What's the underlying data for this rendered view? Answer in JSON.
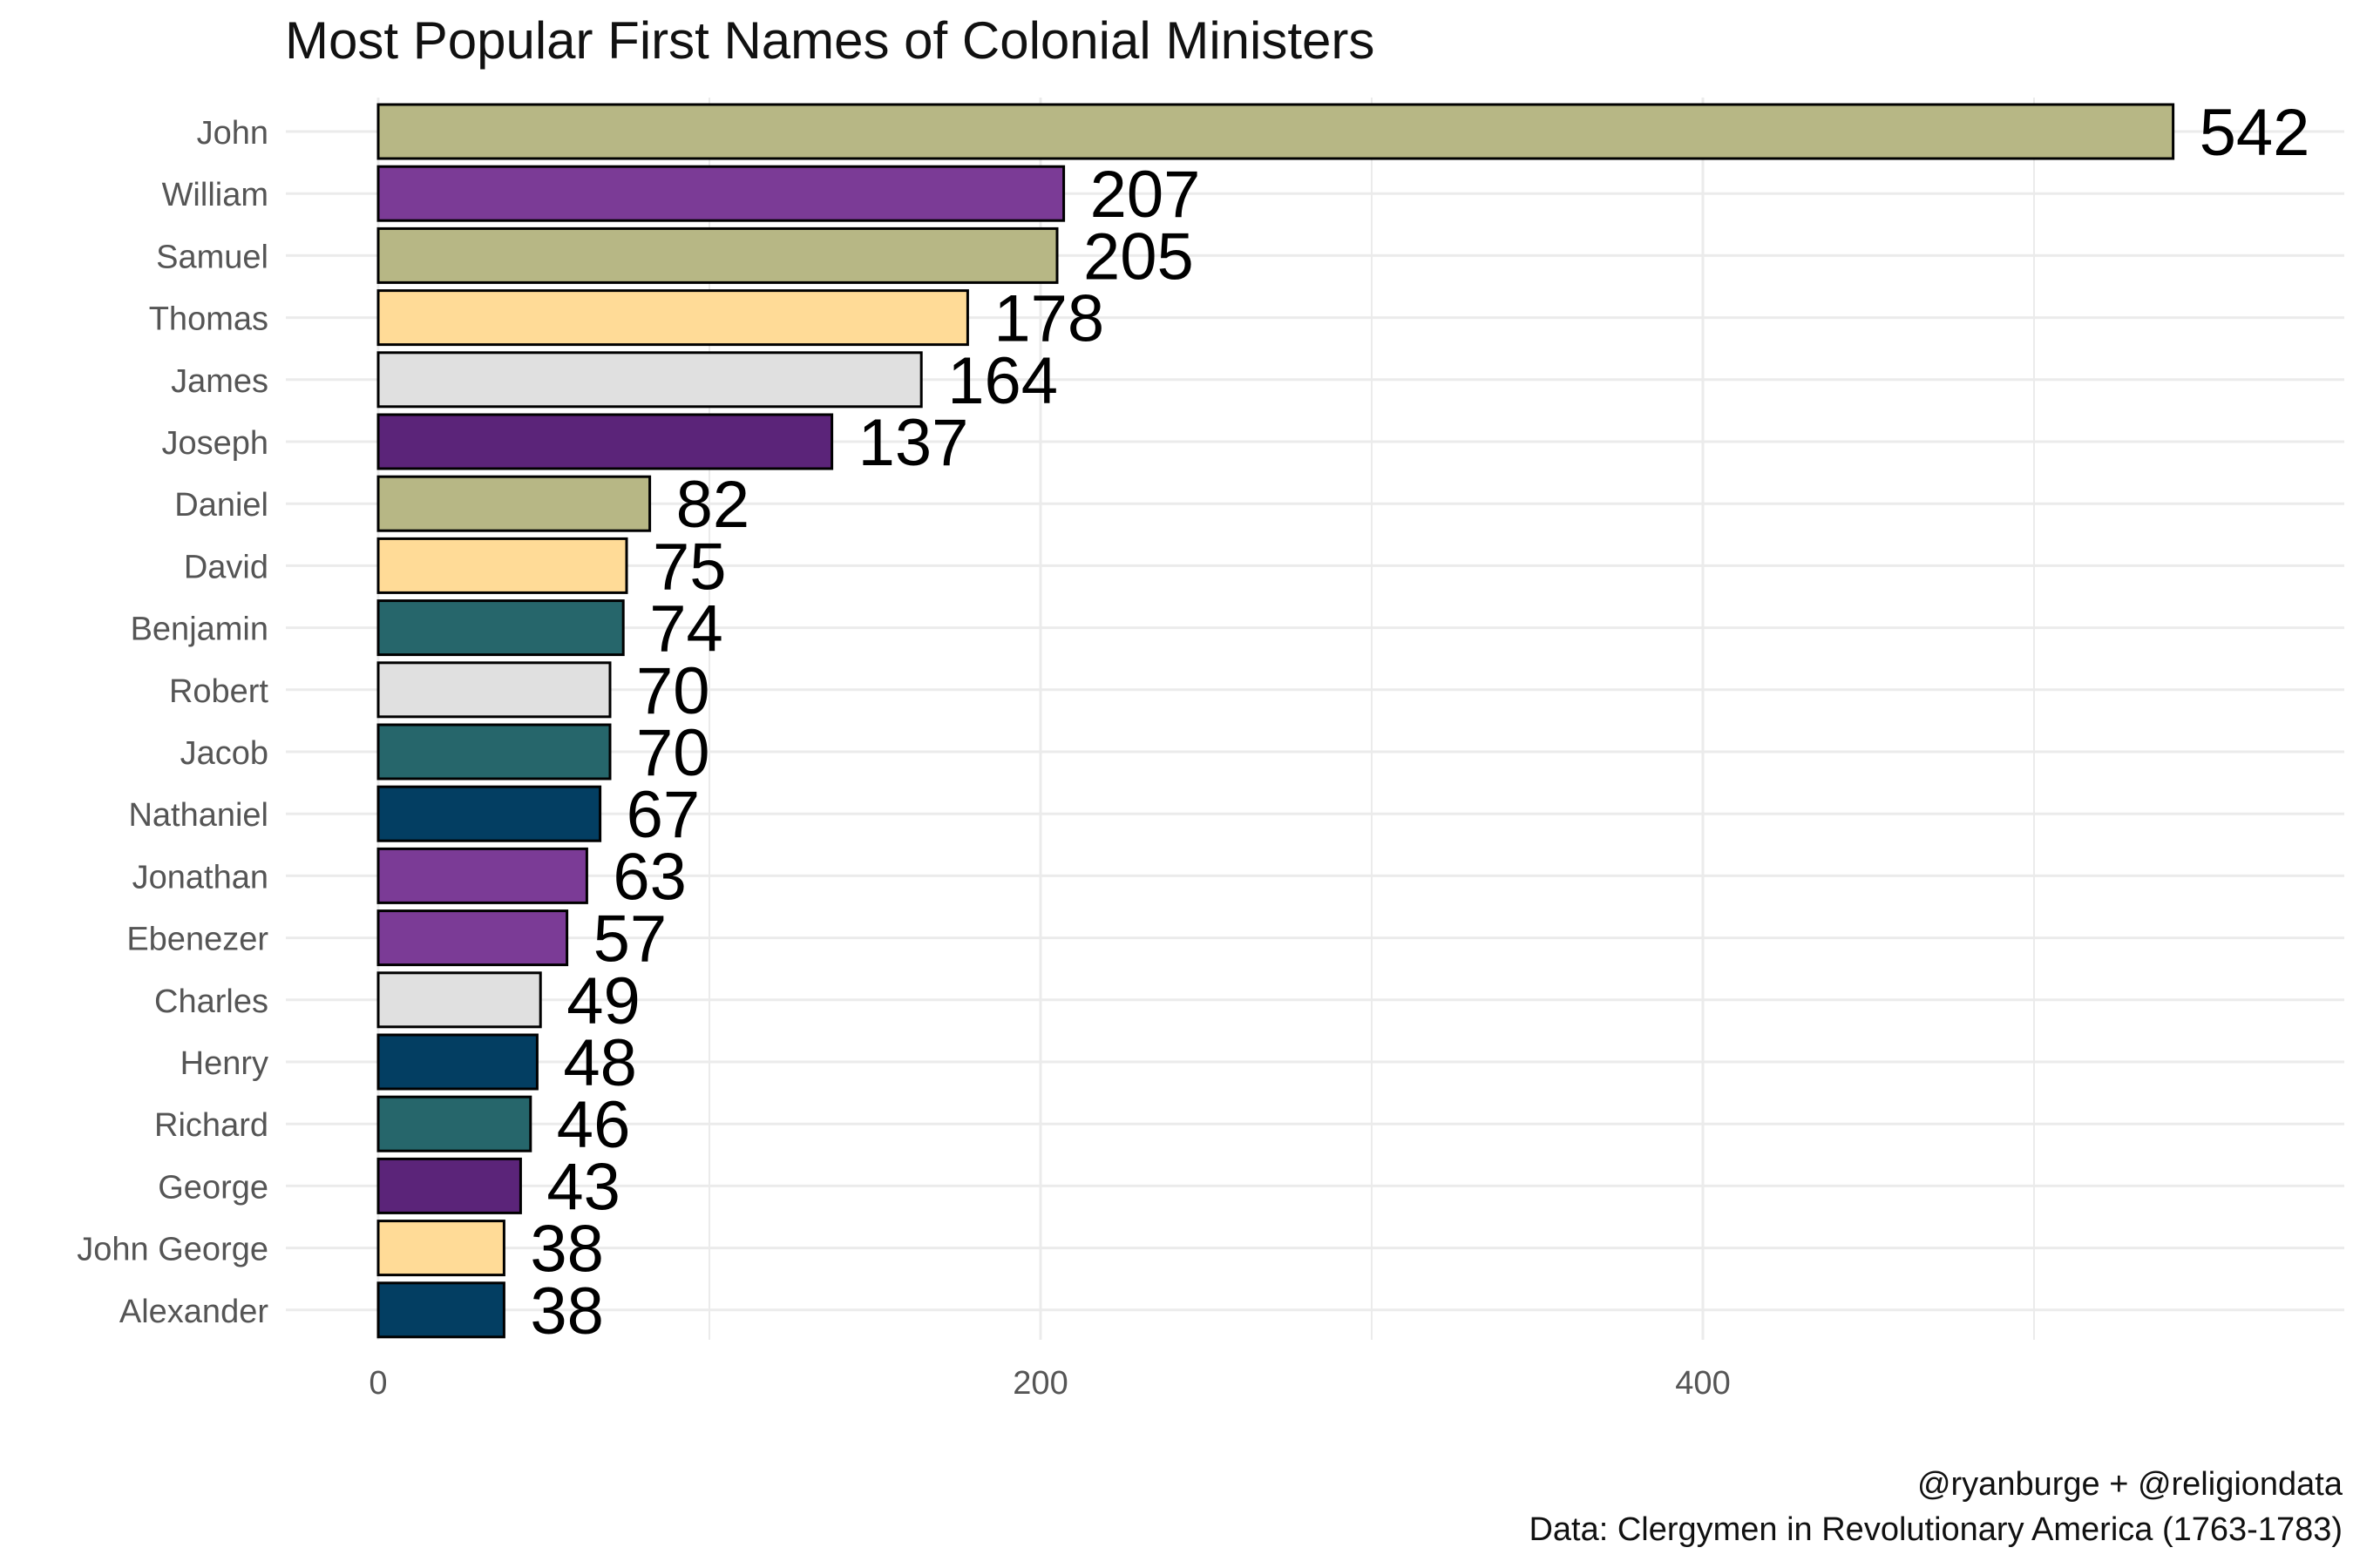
{
  "chart_data": {
    "type": "bar",
    "orientation": "horizontal",
    "title": "Most Popular First Names of Colonial Ministers",
    "caption_lines": [
      "@ryanburge + @religiondata",
      "Data: Clergymen in Revolutionary America (1763-1783)"
    ],
    "xlabel": "",
    "ylabel": "",
    "xlim": [
      0,
      580
    ],
    "x_ticks": [
      0,
      200,
      400
    ],
    "grid": true,
    "legend": "none",
    "categories": [
      "John",
      "William",
      "Samuel",
      "Thomas",
      "James",
      "Joseph",
      "Daniel",
      "David",
      "Benjamin",
      "Robert",
      "Jacob",
      "Nathaniel",
      "Jonathan",
      "Ebenezer",
      "Charles",
      "Henry",
      "Richard",
      "George",
      "John George",
      "Alexander"
    ],
    "values": [
      542,
      207,
      205,
      178,
      164,
      137,
      82,
      75,
      74,
      70,
      70,
      67,
      63,
      57,
      49,
      48,
      46,
      43,
      38,
      38
    ],
    "value_labels": [
      "542",
      "207",
      "205",
      "178",
      "164",
      "137",
      "82",
      "75",
      "74",
      "70",
      "70",
      "67",
      "63",
      "57",
      "49",
      "48",
      "46",
      "43",
      "38",
      "38"
    ],
    "colors": [
      "#b7b785",
      "#7b3b96",
      "#b7b785",
      "#ffdb97",
      "#e0e0e0",
      "#5b2479",
      "#b7b785",
      "#ffdb97",
      "#26666b",
      "#e0e0e0",
      "#26666b",
      "#033e62",
      "#7b3b96",
      "#7b3b96",
      "#e0e0e0",
      "#033e62",
      "#26666b",
      "#5b2479",
      "#ffdb97",
      "#033e62"
    ]
  }
}
